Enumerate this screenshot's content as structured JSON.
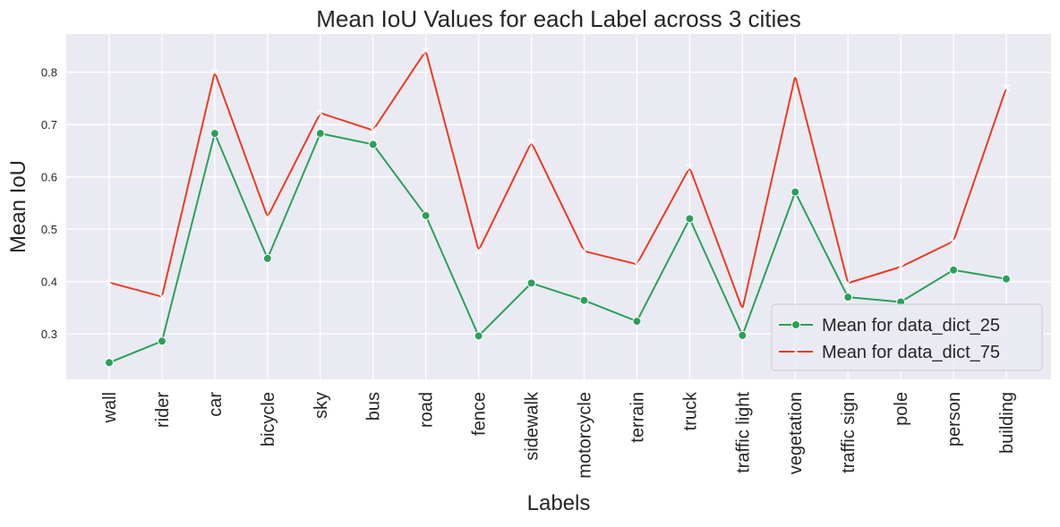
{
  "chart_data": {
    "type": "line",
    "title": "Mean IoU Values for each Label across 3 cities",
    "xlabel": "Labels",
    "ylabel": "Mean IoU",
    "categories": [
      "wall",
      "rider",
      "car",
      "bicycle",
      "sky",
      "bus",
      "road",
      "fence",
      "sidewalk",
      "motorcycle",
      "terrain",
      "truck",
      "traffic light",
      "vegetation",
      "traffic sign",
      "pole",
      "person",
      "building"
    ],
    "series": [
      {
        "name": "Mean for data_dict_25",
        "color": "#2ca05a",
        "marker": "circle",
        "values": [
          0.245,
          0.286,
          0.683,
          0.444,
          0.683,
          0.662,
          0.526,
          0.296,
          0.397,
          0.364,
          0.324,
          0.52,
          0.297,
          0.571,
          0.37,
          0.361,
          0.422,
          0.405
        ]
      },
      {
        "name": "Mean for data_dict_75",
        "color": "#ee3a22",
        "marker": "x",
        "values": [
          0.398,
          0.371,
          0.8,
          0.523,
          0.722,
          0.689,
          0.841,
          0.459,
          0.666,
          0.458,
          0.433,
          0.618,
          0.347,
          0.793,
          0.397,
          0.428,
          0.477,
          0.77
        ]
      }
    ],
    "ylim": [
      0.213,
      0.873
    ],
    "yticks": [
      0.3,
      0.4,
      0.5,
      0.6,
      0.7,
      0.8
    ],
    "ytick_labels": [
      "0.3",
      "0.4",
      "0.5",
      "0.6",
      "0.7",
      "0.8"
    ],
    "grid": true,
    "legend_position": "lower-right",
    "background": "#eaeaf2"
  }
}
